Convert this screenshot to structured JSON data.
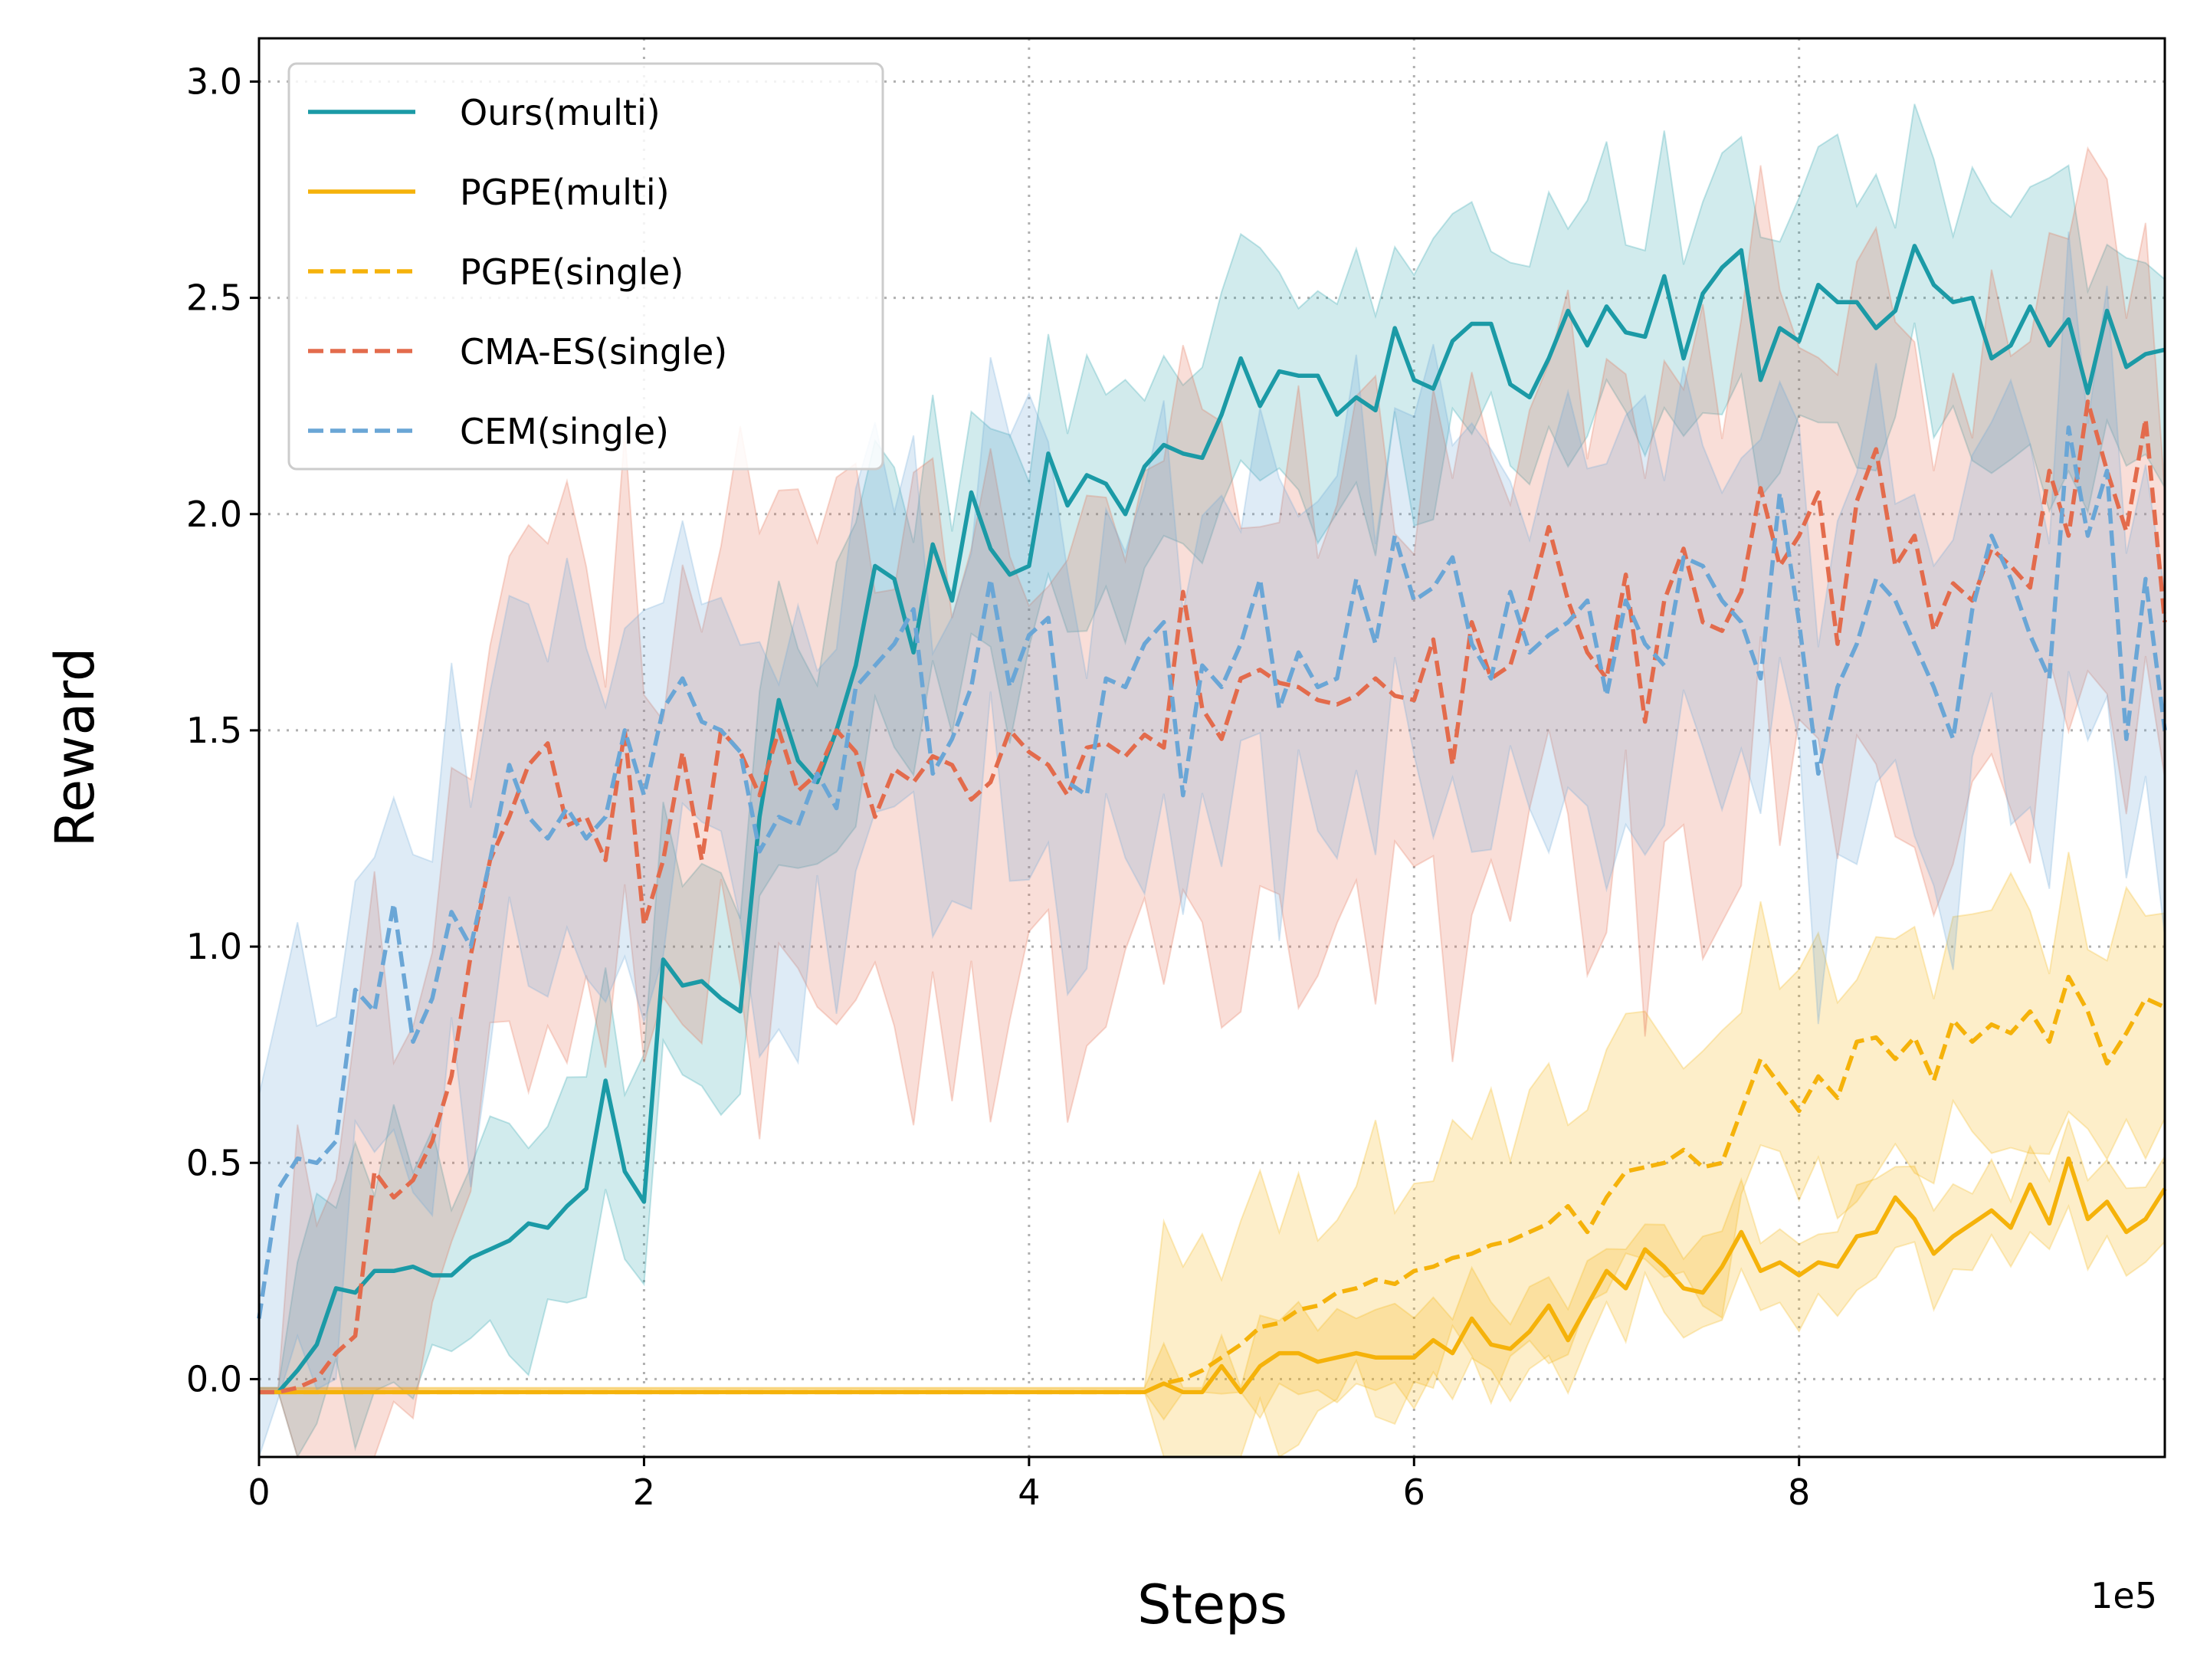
{
  "chart_data": {
    "type": "line",
    "xlabel": "Steps",
    "ylabel": "Reward",
    "x_offset_label": "1e5",
    "xlim": [
      0,
      9.9
    ],
    "ylim": [
      -0.18,
      3.1
    ],
    "xticks": [
      0,
      2,
      4,
      6,
      8
    ],
    "xtick_labels": [
      "0",
      "2",
      "4",
      "6",
      "8"
    ],
    "yticks": [
      0.0,
      0.5,
      1.0,
      1.5,
      2.0,
      2.5,
      3.0
    ],
    "ytick_labels": [
      "0.0",
      "0.5",
      "1.0",
      "1.5",
      "2.0",
      "2.5",
      "3.0"
    ],
    "grid": true,
    "legend_position": "top-left",
    "series": [
      {
        "name": "Ours(multi)",
        "color": "#1b9aa6",
        "linestyle": "solid",
        "band_opacity": 0.2,
        "band_width": 0.27,
        "x": [
          0,
          0.1,
          0.2,
          0.3,
          0.4,
          0.5,
          0.6,
          0.7,
          0.8,
          0.9,
          1.0,
          1.1,
          1.2,
          1.3,
          1.4,
          1.5,
          1.6,
          1.7,
          1.8,
          1.9,
          2.0,
          2.1,
          2.2,
          2.3,
          2.4,
          2.5,
          2.6,
          2.7,
          2.8,
          2.9,
          3.0,
          3.1,
          3.2,
          3.3,
          3.4,
          3.5,
          3.6,
          3.7,
          3.8,
          3.9,
          4.0,
          4.1,
          4.2,
          4.3,
          4.4,
          4.5,
          4.6,
          4.7,
          4.8,
          4.9,
          5.0,
          5.1,
          5.2,
          5.3,
          5.4,
          5.5,
          5.6,
          5.7,
          5.8,
          5.9,
          6.0,
          6.1,
          6.2,
          6.3,
          6.4,
          6.5,
          6.6,
          6.7,
          6.8,
          6.9,
          7.0,
          7.1,
          7.2,
          7.3,
          7.4,
          7.5,
          7.6,
          7.7,
          7.8,
          7.9,
          8.0,
          8.1,
          8.2,
          8.3,
          8.4,
          8.5,
          8.6,
          8.7,
          8.8,
          8.9,
          9.0,
          9.1,
          9.2,
          9.3,
          9.4,
          9.5,
          9.6,
          9.7,
          9.8,
          9.9
        ],
        "y": [
          -0.03,
          -0.03,
          0.02,
          0.08,
          0.21,
          0.2,
          0.25,
          0.25,
          0.26,
          0.24,
          0.24,
          0.28,
          0.3,
          0.32,
          0.36,
          0.35,
          0.4,
          0.44,
          0.69,
          0.48,
          0.41,
          0.97,
          0.91,
          0.92,
          0.88,
          0.85,
          1.3,
          1.57,
          1.43,
          1.38,
          1.5,
          1.65,
          1.88,
          1.85,
          1.68,
          1.93,
          1.8,
          2.05,
          1.92,
          1.86,
          1.88,
          2.14,
          2.02,
          2.09,
          2.07,
          2.0,
          2.11,
          2.16,
          2.14,
          2.13,
          2.23,
          2.36,
          2.25,
          2.33,
          2.32,
          2.32,
          2.23,
          2.27,
          2.24,
          2.43,
          2.31,
          2.29,
          2.4,
          2.44,
          2.44,
          2.3,
          2.27,
          2.36,
          2.47,
          2.39,
          2.48,
          2.42,
          2.41,
          2.55,
          2.36,
          2.51,
          2.57,
          2.61,
          2.31,
          2.43,
          2.4,
          2.53,
          2.49,
          2.49,
          2.43,
          2.47,
          2.62,
          2.53,
          2.49,
          2.5,
          2.36,
          2.39,
          2.48,
          2.39,
          2.45,
          2.28,
          2.47,
          2.34,
          2.37,
          2.38
        ]
      },
      {
        "name": "PGPE(multi)",
        "color": "#f5b20a",
        "linestyle": "solid",
        "band_opacity": 0.22,
        "band_width": 0.09,
        "x": [
          0,
          0.5,
          1.0,
          1.5,
          2.0,
          2.5,
          3.0,
          3.5,
          4.0,
          4.5,
          4.6,
          4.7,
          4.8,
          4.9,
          5.0,
          5.1,
          5.2,
          5.3,
          5.4,
          5.5,
          5.6,
          5.7,
          5.8,
          5.9,
          6.0,
          6.1,
          6.2,
          6.3,
          6.4,
          6.5,
          6.6,
          6.7,
          6.8,
          6.9,
          7.0,
          7.1,
          7.2,
          7.3,
          7.4,
          7.5,
          7.6,
          7.7,
          7.8,
          7.9,
          8.0,
          8.1,
          8.2,
          8.3,
          8.4,
          8.5,
          8.6,
          8.7,
          8.8,
          8.9,
          9.0,
          9.1,
          9.2,
          9.3,
          9.4,
          9.5,
          9.6,
          9.7,
          9.8,
          9.9
        ],
        "y": [
          -0.03,
          -0.03,
          -0.03,
          -0.03,
          -0.03,
          -0.03,
          -0.03,
          -0.03,
          -0.03,
          -0.03,
          -0.03,
          -0.01,
          -0.03,
          -0.03,
          0.03,
          -0.03,
          0.03,
          0.06,
          0.06,
          0.04,
          0.05,
          0.06,
          0.05,
          0.05,
          0.05,
          0.09,
          0.06,
          0.14,
          0.08,
          0.07,
          0.11,
          0.17,
          0.09,
          0.17,
          0.25,
          0.21,
          0.3,
          0.26,
          0.21,
          0.2,
          0.26,
          0.34,
          0.25,
          0.27,
          0.24,
          0.27,
          0.26,
          0.33,
          0.34,
          0.42,
          0.37,
          0.29,
          0.33,
          0.36,
          0.39,
          0.35,
          0.45,
          0.36,
          0.51,
          0.37,
          0.41,
          0.34,
          0.37,
          0.44
        ]
      },
      {
        "name": "PGPE(single)",
        "color": "#f5b20a",
        "linestyle": "dashed",
        "band_opacity": 0.22,
        "band_width": 0.26,
        "x": [
          0,
          0.5,
          1.0,
          1.5,
          2.0,
          2.5,
          3.0,
          3.5,
          4.0,
          4.5,
          4.6,
          4.7,
          4.8,
          4.9,
          5.0,
          5.1,
          5.2,
          5.3,
          5.4,
          5.5,
          5.6,
          5.7,
          5.8,
          5.9,
          6.0,
          6.1,
          6.2,
          6.3,
          6.4,
          6.5,
          6.6,
          6.7,
          6.8,
          6.9,
          7.0,
          7.1,
          7.2,
          7.3,
          7.4,
          7.5,
          7.6,
          7.7,
          7.8,
          7.9,
          8.0,
          8.1,
          8.2,
          8.3,
          8.4,
          8.5,
          8.6,
          8.7,
          8.8,
          8.9,
          9.0,
          9.1,
          9.2,
          9.3,
          9.4,
          9.5,
          9.6,
          9.7,
          9.8,
          9.9
        ],
        "y": [
          -0.03,
          -0.03,
          -0.03,
          -0.03,
          -0.03,
          -0.03,
          -0.03,
          -0.03,
          -0.03,
          -0.03,
          -0.03,
          -0.01,
          0.0,
          0.02,
          0.05,
          0.08,
          0.12,
          0.13,
          0.16,
          0.17,
          0.2,
          0.21,
          0.23,
          0.22,
          0.25,
          0.26,
          0.28,
          0.29,
          0.31,
          0.32,
          0.34,
          0.36,
          0.4,
          0.34,
          0.42,
          0.48,
          0.49,
          0.5,
          0.53,
          0.49,
          0.5,
          0.62,
          0.74,
          0.68,
          0.62,
          0.7,
          0.65,
          0.78,
          0.79,
          0.74,
          0.79,
          0.69,
          0.83,
          0.78,
          0.82,
          0.8,
          0.85,
          0.78,
          0.93,
          0.85,
          0.73,
          0.8,
          0.88,
          0.86
        ]
      },
      {
        "name": "CMA-ES(single)",
        "color": "#e36b4c",
        "linestyle": "dashed",
        "band_opacity": 0.22,
        "band_width": 0.55,
        "x": [
          0,
          0.1,
          0.2,
          0.3,
          0.4,
          0.5,
          0.6,
          0.7,
          0.8,
          0.9,
          1.0,
          1.1,
          1.2,
          1.3,
          1.4,
          1.5,
          1.6,
          1.7,
          1.8,
          1.9,
          2.0,
          2.1,
          2.2,
          2.3,
          2.4,
          2.5,
          2.6,
          2.7,
          2.8,
          2.9,
          3.0,
          3.1,
          3.2,
          3.3,
          3.4,
          3.5,
          3.6,
          3.7,
          3.8,
          3.9,
          4.0,
          4.1,
          4.2,
          4.3,
          4.4,
          4.5,
          4.6,
          4.7,
          4.8,
          4.9,
          5.0,
          5.1,
          5.2,
          5.3,
          5.4,
          5.5,
          5.6,
          5.7,
          5.8,
          5.9,
          6.0,
          6.1,
          6.2,
          6.3,
          6.4,
          6.5,
          6.6,
          6.7,
          6.8,
          6.9,
          7.0,
          7.1,
          7.2,
          7.3,
          7.4,
          7.5,
          7.6,
          7.7,
          7.8,
          7.9,
          8.0,
          8.1,
          8.2,
          8.3,
          8.4,
          8.5,
          8.6,
          8.7,
          8.8,
          8.9,
          9.0,
          9.1,
          9.2,
          9.3,
          9.4,
          9.5,
          9.6,
          9.7,
          9.8,
          9.9
        ],
        "y": [
          -0.03,
          -0.03,
          -0.02,
          0.0,
          0.06,
          0.1,
          0.48,
          0.42,
          0.46,
          0.55,
          0.7,
          0.98,
          1.2,
          1.3,
          1.42,
          1.47,
          1.28,
          1.3,
          1.2,
          1.5,
          1.05,
          1.2,
          1.45,
          1.2,
          1.5,
          1.45,
          1.35,
          1.5,
          1.36,
          1.4,
          1.5,
          1.45,
          1.3,
          1.41,
          1.38,
          1.44,
          1.42,
          1.34,
          1.38,
          1.5,
          1.45,
          1.42,
          1.35,
          1.46,
          1.47,
          1.44,
          1.49,
          1.46,
          1.82,
          1.55,
          1.48,
          1.62,
          1.64,
          1.61,
          1.6,
          1.57,
          1.56,
          1.58,
          1.62,
          1.58,
          1.57,
          1.71,
          1.42,
          1.75,
          1.62,
          1.65,
          1.8,
          1.97,
          1.8,
          1.68,
          1.62,
          1.86,
          1.52,
          1.8,
          1.92,
          1.75,
          1.73,
          1.82,
          2.06,
          1.88,
          1.95,
          2.05,
          1.7,
          2.03,
          2.15,
          1.88,
          1.95,
          1.73,
          1.84,
          1.8,
          1.92,
          1.88,
          1.83,
          2.1,
          1.95,
          2.26,
          2.1,
          1.96,
          2.22,
          1.75
        ]
      },
      {
        "name": "CEM(single)",
        "color": "#6aa6d6",
        "linestyle": "dashed",
        "band_opacity": 0.22,
        "band_width": 0.4,
        "x": [
          0,
          0.1,
          0.2,
          0.3,
          0.4,
          0.5,
          0.6,
          0.7,
          0.8,
          0.9,
          1.0,
          1.1,
          1.2,
          1.3,
          1.4,
          1.5,
          1.6,
          1.7,
          1.8,
          1.9,
          2.0,
          2.1,
          2.2,
          2.3,
          2.4,
          2.5,
          2.6,
          2.7,
          2.8,
          2.9,
          3.0,
          3.1,
          3.2,
          3.3,
          3.4,
          3.5,
          3.6,
          3.7,
          3.8,
          3.9,
          4.0,
          4.1,
          4.2,
          4.3,
          4.4,
          4.5,
          4.6,
          4.7,
          4.8,
          4.9,
          5.0,
          5.1,
          5.2,
          5.3,
          5.4,
          5.5,
          5.6,
          5.7,
          5.8,
          5.9,
          6.0,
          6.1,
          6.2,
          6.3,
          6.4,
          6.5,
          6.6,
          6.7,
          6.8,
          6.9,
          7.0,
          7.1,
          7.2,
          7.3,
          7.4,
          7.5,
          7.6,
          7.7,
          7.8,
          7.9,
          8.0,
          8.1,
          8.2,
          8.3,
          8.4,
          8.5,
          8.6,
          8.7,
          8.8,
          8.9,
          9.0,
          9.1,
          9.2,
          9.3,
          9.4,
          9.5,
          9.6,
          9.7,
          9.8,
          9.9
        ],
        "y": [
          0.14,
          0.44,
          0.51,
          0.5,
          0.55,
          0.9,
          0.85,
          1.1,
          0.78,
          0.88,
          1.08,
          1.0,
          1.2,
          1.42,
          1.3,
          1.25,
          1.32,
          1.25,
          1.3,
          1.5,
          1.35,
          1.55,
          1.62,
          1.52,
          1.5,
          1.45,
          1.22,
          1.3,
          1.28,
          1.4,
          1.32,
          1.6,
          1.65,
          1.7,
          1.78,
          1.4,
          1.48,
          1.6,
          1.85,
          1.6,
          1.72,
          1.76,
          1.38,
          1.35,
          1.62,
          1.6,
          1.7,
          1.75,
          1.35,
          1.65,
          1.6,
          1.7,
          1.85,
          1.55,
          1.68,
          1.6,
          1.62,
          1.85,
          1.7,
          1.95,
          1.8,
          1.83,
          1.9,
          1.7,
          1.62,
          1.82,
          1.68,
          1.72,
          1.75,
          1.8,
          1.58,
          1.8,
          1.7,
          1.65,
          1.9,
          1.88,
          1.8,
          1.75,
          1.62,
          2.05,
          1.75,
          1.4,
          1.6,
          1.7,
          1.85,
          1.8,
          1.7,
          1.6,
          1.48,
          1.78,
          1.95,
          1.85,
          1.72,
          1.62,
          2.2,
          1.95,
          2.1,
          1.48,
          1.85,
          1.5
        ]
      }
    ]
  }
}
